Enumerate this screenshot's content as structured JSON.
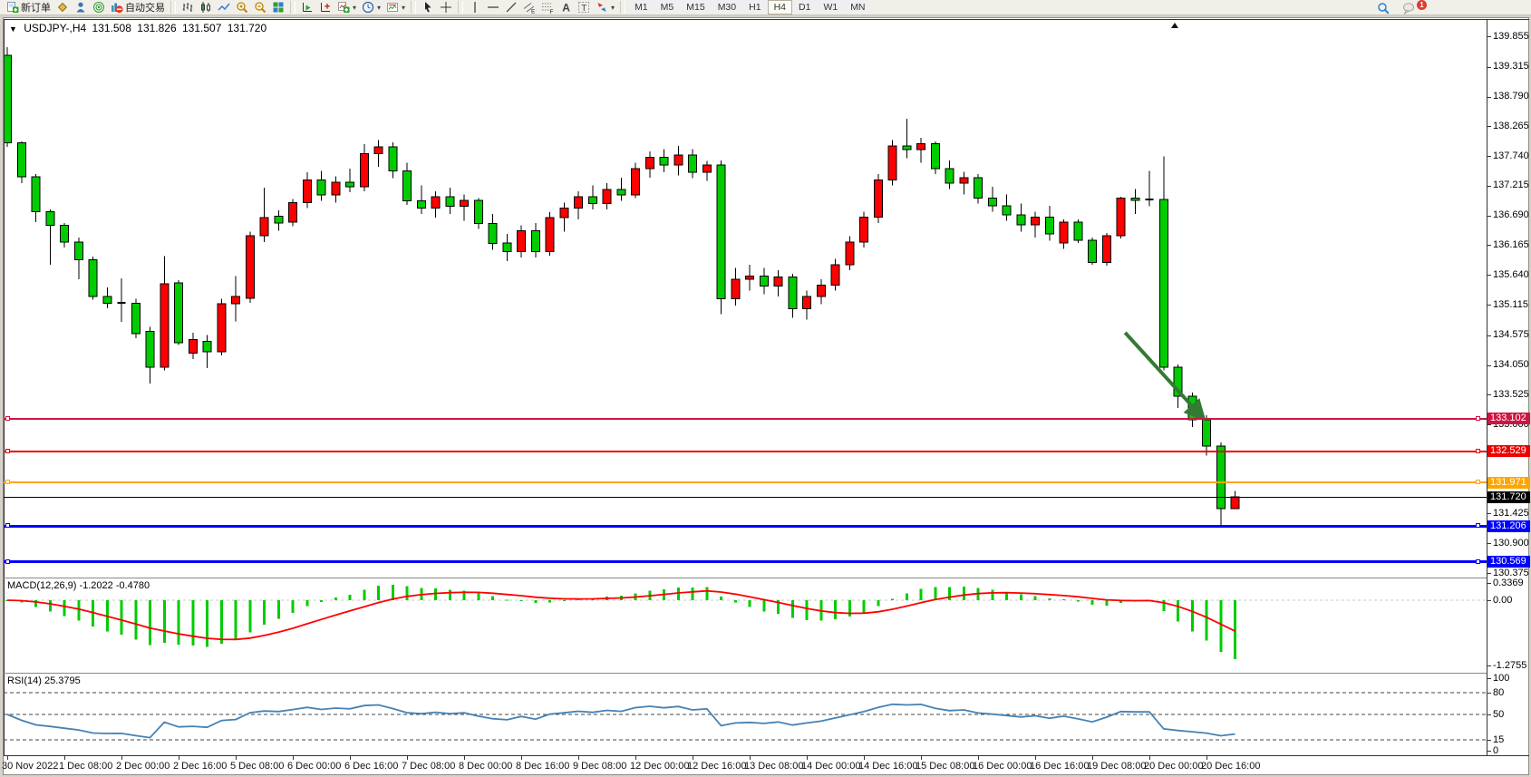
{
  "toolbar": {
    "left_buttons": [
      {
        "name": "new-order-button",
        "icon": "new-order-icon",
        "label": "新订单"
      },
      {
        "name": "market-watch-button",
        "icon": "diamond-icon",
        "label": ""
      },
      {
        "name": "data-window-button",
        "icon": "person-icon",
        "label": ""
      },
      {
        "name": "navigator-button",
        "icon": "sonar-icon",
        "label": ""
      },
      {
        "name": "auto-trading-button",
        "icon": "no-entry-icon",
        "label": "自动交易"
      }
    ],
    "chart_buttons": [
      {
        "name": "bar-chart-button",
        "icon": "bars-icon"
      },
      {
        "name": "candlestick-chart-button",
        "icon": "candle-icon"
      },
      {
        "name": "line-chart-button",
        "icon": "line-icon"
      },
      {
        "name": "zoom-in-button",
        "icon": "zoom-in-icon"
      },
      {
        "name": "zoom-out-button",
        "icon": "zoom-out-icon"
      },
      {
        "name": "tile-windows-button",
        "icon": "tile-icon"
      },
      {
        "name": "auto-scroll-button",
        "icon": "auto-scroll-icon"
      },
      {
        "name": "chart-shift-button",
        "icon": "chart-shift-icon"
      },
      {
        "name": "indicators-button",
        "icon": "add-indicator-icon",
        "dropdown": true
      },
      {
        "name": "periods-button",
        "icon": "clock-icon",
        "dropdown": true
      },
      {
        "name": "templates-button",
        "icon": "template-icon",
        "dropdown": true
      }
    ],
    "draw_buttons": [
      {
        "name": "cursor-button",
        "icon": "cursor-icon"
      },
      {
        "name": "crosshair-button",
        "icon": "crosshair-icon"
      },
      {
        "name": "vertical-line-button",
        "icon": "vline-icon"
      },
      {
        "name": "horizontal-line-button",
        "icon": "hline-icon"
      },
      {
        "name": "trendline-button",
        "icon": "trendline-icon"
      },
      {
        "name": "channel-button",
        "icon": "channel-icon"
      },
      {
        "name": "fibonacci-button",
        "icon": "fibonacci-icon"
      },
      {
        "name": "text-button",
        "icon": "text-icon"
      },
      {
        "name": "label-button",
        "icon": "label-icon"
      },
      {
        "name": "arrows-button",
        "icon": "arrows-icon",
        "dropdown": true
      }
    ],
    "timeframes": [
      "M1",
      "M5",
      "M15",
      "M30",
      "H1",
      "H4",
      "D1",
      "W1",
      "MN"
    ],
    "active_timeframe": "H4",
    "right_buttons": [
      {
        "name": "search-button",
        "icon": "search-icon"
      },
      {
        "name": "notifications-button",
        "icon": "balloon-icon",
        "badge": "1"
      }
    ]
  },
  "chart": {
    "symbol_period": "USDJPY-,H4",
    "open": "131.508",
    "high": "131.826",
    "low": "131.507",
    "close": "131.720"
  },
  "price_axis": {
    "ticks": [
      "139.855",
      "139.315",
      "138.790",
      "138.265",
      "137.740",
      "137.215",
      "136.690",
      "136.165",
      "135.640",
      "135.115",
      "134.575",
      "134.050",
      "133.525",
      "133.000",
      "131.425",
      "130.900",
      "130.375"
    ]
  },
  "price_lines": [
    {
      "name": "resistance-line-crimson",
      "label": "133.102",
      "price": 133.102,
      "color": "#CE1443",
      "width": 2
    },
    {
      "name": "resistance-line-red",
      "label": "132.529",
      "price": 132.529,
      "color": "#EE0000",
      "width": 2
    },
    {
      "name": "level-line-orange",
      "label": "131.971",
      "price": 131.971,
      "color": "#FFA500",
      "width": 2
    },
    {
      "name": "current-price-line",
      "label": "131.720",
      "price": 131.72,
      "color": "#000000",
      "width": 1,
      "current": true
    },
    {
      "name": "support-line-blue-upper",
      "label": "131.206",
      "price": 131.206,
      "color": "#0000FF",
      "width": 3
    },
    {
      "name": "support-line-blue-lower",
      "label": "130.569",
      "price": 130.569,
      "color": "#0000FF",
      "width": 3
    }
  ],
  "time_axis": {
    "labels": [
      "30 Nov 2022",
      "1 Dec 08:00",
      "2 Dec 00:00",
      "2 Dec 16:00",
      "5 Dec 08:00",
      "6 Dec 00:00",
      "6 Dec 16:00",
      "7 Dec 08:00",
      "8 Dec 00:00",
      "8 Dec 16:00",
      "9 Dec 08:00",
      "12 Dec 00:00",
      "12 Dec 16:00",
      "13 Dec 08:00",
      "14 Dec 00:00",
      "14 Dec 16:00",
      "15 Dec 08:00",
      "16 Dec 00:00",
      "16 Dec 16:00",
      "19 Dec 08:00",
      "20 Dec 00:00",
      "20 Dec 16:00"
    ]
  },
  "indicators": {
    "macd": {
      "label": "MACD(12,26,9) -1.2022 -0.4780",
      "params": [
        12,
        26,
        9
      ],
      "value": -1.2022,
      "signal": -0.478,
      "axis": [
        {
          "label": "0.3369",
          "value": 0.3369
        },
        {
          "label": "0.00",
          "value": 0
        },
        {
          "label": "-1.2755",
          "value": -1.2755
        }
      ],
      "histogram_color": "#00CC00",
      "signal_color": "#FF0000"
    },
    "rsi": {
      "label": "RSI(14) 25.3795",
      "period": 14,
      "value": 25.3795,
      "axis": [
        {
          "label": "100",
          "value": 100
        },
        {
          "label": "80",
          "value": 80
        },
        {
          "label": "50",
          "value": 50
        },
        {
          "label": "15",
          "value": 15
        },
        {
          "label": "0",
          "value": 0
        }
      ],
      "levels": [
        80,
        50,
        15
      ],
      "line_color": "#4682B4"
    }
  },
  "annotation": {
    "name": "sell-arrow",
    "type": "arrow",
    "color": "#337A33",
    "from": {
      "bar": 78.3,
      "price": 134.62
    },
    "to": {
      "bar": 83.8,
      "price": 133.1
    }
  },
  "chart_data": {
    "type": "candlestick",
    "symbol": "USDJPY-",
    "timeframe": "H4",
    "up_color": "#FF0000",
    "down_color": "#00CC00",
    "wick_color": "#000000",
    "ylim": [
      130.2,
      140.0
    ],
    "candles": [
      [
        139.52,
        139.66,
        137.9,
        137.97
      ],
      [
        137.97,
        138.0,
        137.26,
        137.37
      ],
      [
        137.37,
        137.42,
        136.57,
        136.76
      ],
      [
        136.76,
        136.8,
        135.82,
        136.52
      ],
      [
        136.52,
        136.56,
        136.12,
        136.22
      ],
      [
        136.22,
        136.3,
        135.56,
        135.91
      ],
      [
        135.91,
        135.96,
        135.2,
        135.26
      ],
      [
        135.26,
        135.42,
        135.05,
        135.14
      ],
      [
        135.15,
        135.58,
        134.81,
        135.15
      ],
      [
        135.14,
        135.22,
        134.52,
        134.6
      ],
      [
        134.64,
        134.72,
        133.72,
        134.01
      ],
      [
        134.01,
        135.97,
        133.95,
        135.48
      ],
      [
        135.5,
        135.55,
        134.4,
        134.44
      ],
      [
        134.26,
        134.62,
        134.15,
        134.5
      ],
      [
        134.47,
        134.58,
        133.99,
        134.28
      ],
      [
        134.28,
        135.22,
        134.22,
        135.13
      ],
      [
        135.13,
        135.62,
        134.82,
        135.26
      ],
      [
        135.23,
        136.4,
        135.15,
        136.33
      ],
      [
        136.33,
        137.18,
        136.22,
        136.65
      ],
      [
        136.68,
        136.78,
        136.42,
        136.56
      ],
      [
        136.57,
        136.98,
        136.5,
        136.92
      ],
      [
        136.92,
        137.45,
        136.82,
        137.32
      ],
      [
        137.32,
        137.48,
        136.95,
        137.05
      ],
      [
        137.05,
        137.38,
        136.92,
        137.28
      ],
      [
        137.28,
        137.52,
        137.1,
        137.2
      ],
      [
        137.2,
        137.95,
        137.12,
        137.78
      ],
      [
        137.78,
        138.02,
        137.55,
        137.9
      ],
      [
        137.9,
        137.98,
        137.35,
        137.48
      ],
      [
        137.48,
        137.62,
        136.88,
        136.95
      ],
      [
        136.95,
        137.22,
        136.72,
        136.82
      ],
      [
        136.82,
        137.12,
        136.65,
        137.02
      ],
      [
        137.02,
        137.18,
        136.72,
        136.85
      ],
      [
        136.85,
        137.06,
        136.6,
        136.96
      ],
      [
        136.96,
        137.0,
        136.45,
        136.55
      ],
      [
        136.55,
        136.72,
        136.08,
        136.2
      ],
      [
        136.2,
        136.36,
        135.88,
        136.05
      ],
      [
        136.05,
        136.52,
        135.95,
        136.42
      ],
      [
        136.42,
        136.56,
        135.95,
        136.05
      ],
      [
        136.05,
        136.75,
        135.98,
        136.65
      ],
      [
        136.65,
        136.92,
        136.4,
        136.82
      ],
      [
        136.82,
        137.12,
        136.62,
        137.02
      ],
      [
        137.02,
        137.22,
        136.8,
        136.9
      ],
      [
        136.9,
        137.26,
        136.8,
        137.15
      ],
      [
        137.15,
        137.36,
        136.95,
        137.05
      ],
      [
        137.05,
        137.62,
        137.0,
        137.52
      ],
      [
        137.52,
        137.82,
        137.36,
        137.72
      ],
      [
        137.72,
        137.86,
        137.45,
        137.58
      ],
      [
        137.58,
        137.92,
        137.4,
        137.76
      ],
      [
        137.76,
        137.86,
        137.35,
        137.45
      ],
      [
        137.45,
        137.65,
        137.3,
        137.58
      ],
      [
        137.58,
        137.66,
        134.95,
        135.22
      ],
      [
        135.22,
        135.76,
        135.1,
        135.56
      ],
      [
        135.56,
        135.82,
        135.36,
        135.62
      ],
      [
        135.62,
        135.76,
        135.3,
        135.44
      ],
      [
        135.44,
        135.72,
        135.26,
        135.6
      ],
      [
        135.6,
        135.66,
        134.88,
        135.04
      ],
      [
        135.04,
        135.36,
        134.85,
        135.26
      ],
      [
        135.26,
        135.56,
        135.12,
        135.46
      ],
      [
        135.46,
        135.92,
        135.36,
        135.82
      ],
      [
        135.82,
        136.32,
        135.72,
        136.22
      ],
      [
        136.22,
        136.76,
        136.12,
        136.66
      ],
      [
        136.66,
        137.42,
        136.56,
        137.32
      ],
      [
        137.32,
        138.02,
        137.22,
        137.92
      ],
      [
        137.92,
        138.4,
        137.7,
        137.85
      ],
      [
        137.85,
        138.06,
        137.62,
        137.96
      ],
      [
        137.96,
        138.0,
        137.42,
        137.52
      ],
      [
        137.52,
        137.66,
        137.16,
        137.26
      ],
      [
        137.26,
        137.46,
        137.06,
        137.36
      ],
      [
        137.36,
        137.42,
        136.9,
        137.0
      ],
      [
        137.0,
        137.2,
        136.76,
        136.86
      ],
      [
        136.86,
        137.06,
        136.6,
        136.7
      ],
      [
        136.7,
        136.9,
        136.4,
        136.52
      ],
      [
        136.52,
        136.76,
        136.3,
        136.66
      ],
      [
        136.66,
        136.86,
        136.24,
        136.36
      ],
      [
        136.2,
        136.62,
        136.1,
        136.57
      ],
      [
        136.57,
        136.62,
        136.2,
        136.25
      ],
      [
        136.25,
        136.3,
        135.82,
        135.86
      ],
      [
        135.86,
        136.38,
        135.8,
        136.33
      ],
      [
        136.33,
        137.02,
        136.28,
        137.0
      ],
      [
        137.0,
        137.16,
        136.72,
        136.96
      ],
      [
        136.97,
        137.48,
        136.85,
        136.97
      ],
      [
        136.97,
        137.73,
        133.95,
        134.01
      ],
      [
        134.01,
        134.06,
        133.29,
        133.5
      ],
      [
        133.5,
        133.56,
        132.95,
        133.08
      ],
      [
        133.08,
        133.16,
        132.45,
        132.62
      ],
      [
        132.62,
        132.68,
        131.21,
        131.51
      ],
      [
        131.508,
        131.826,
        131.507,
        131.72
      ]
    ]
  }
}
